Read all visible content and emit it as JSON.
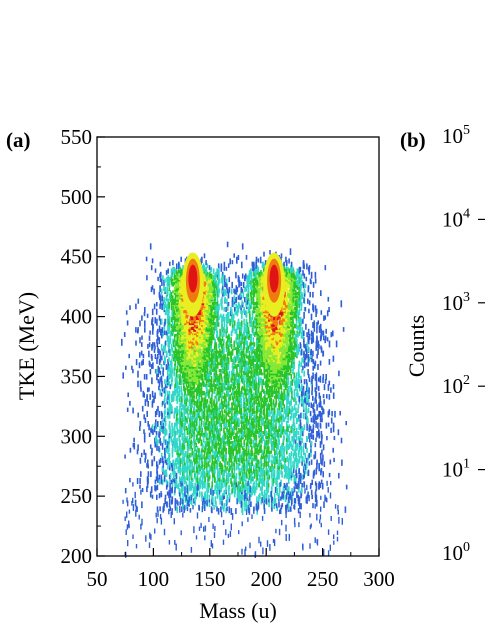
{
  "chart_data": [
    {
      "panel_label": "(a)",
      "type": "heatmap",
      "xlabel": "Mass (u)",
      "ylabel": "TKE (MeV)",
      "xlim": [
        50,
        300
      ],
      "ylim": [
        200,
        550
      ],
      "x_ticks": [
        50,
        100,
        150,
        200,
        250,
        300
      ],
      "y_ticks": [
        200,
        250,
        300,
        350,
        400,
        450,
        500,
        550
      ],
      "x_tick_labels": [
        "50",
        "100",
        "150",
        "200",
        "250",
        "300"
      ],
      "y_tick_labels": [
        "200",
        "250",
        "300",
        "350",
        "400",
        "450",
        "500",
        "550"
      ],
      "grid": false,
      "peaks": [
        {
          "mass": 135,
          "tke": 430
        },
        {
          "mass": 207,
          "tke": 430
        }
      ],
      "colors": {
        "blue": "#2f5fd8",
        "cyan": "#30d8c8",
        "green": "#28c428",
        "lightgreen": "#86e836",
        "yellow": "#e8ee20",
        "orange": "#f07a10",
        "red": "#e01414"
      }
    },
    {
      "panel_label": "(b)",
      "type": "line",
      "ylabel": "Counts",
      "yscale": "log",
      "y_tick_labels": [
        {
          "base": "10",
          "exp": "5"
        },
        {
          "base": "10",
          "exp": "4"
        },
        {
          "base": "10",
          "exp": "3"
        },
        {
          "base": "10",
          "exp": "2"
        },
        {
          "base": "10",
          "exp": "1"
        },
        {
          "base": "10",
          "exp": "0"
        }
      ],
      "ylim": [
        1,
        100000
      ]
    }
  ]
}
